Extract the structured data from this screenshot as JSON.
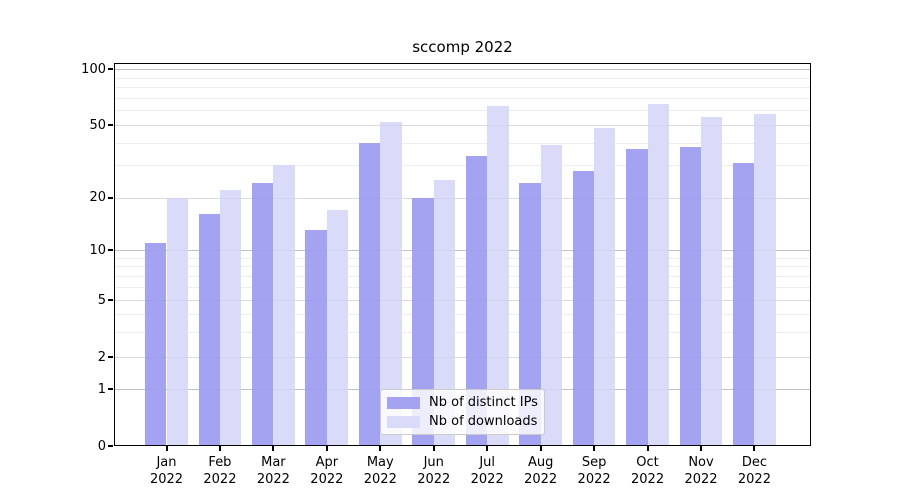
{
  "title": "sccomp 2022",
  "chart_data": {
    "type": "bar",
    "title": "sccomp 2022",
    "categories": [
      "Jan",
      "Feb",
      "Mar",
      "Apr",
      "May",
      "Jun",
      "Jul",
      "Aug",
      "Sep",
      "Oct",
      "Nov",
      "Dec"
    ],
    "category_year": "2022",
    "series": [
      {
        "name": "Nb of distinct IPs",
        "color": "#a3a3f1",
        "values": [
          11,
          16,
          24,
          13,
          40,
          20,
          34,
          24,
          28,
          37,
          38,
          31
        ]
      },
      {
        "name": "Nb of downloads",
        "color": "#dadaf9",
        "values": [
          20,
          22,
          30,
          17,
          52,
          25,
          63,
          39,
          48,
          65,
          55,
          57
        ]
      }
    ],
    "xlabel": "",
    "ylabel": "",
    "y_axis": {
      "scale": "symlog",
      "ticks": [
        0,
        1,
        2,
        5,
        10,
        20,
        50,
        100
      ],
      "tick_labels": [
        "0",
        "1",
        "2",
        "5",
        "10",
        "20",
        "50",
        "100"
      ],
      "ylim": [
        0,
        110
      ]
    },
    "grid": "horizontal, major and minor",
    "legend_position": "inside bottom-center"
  }
}
